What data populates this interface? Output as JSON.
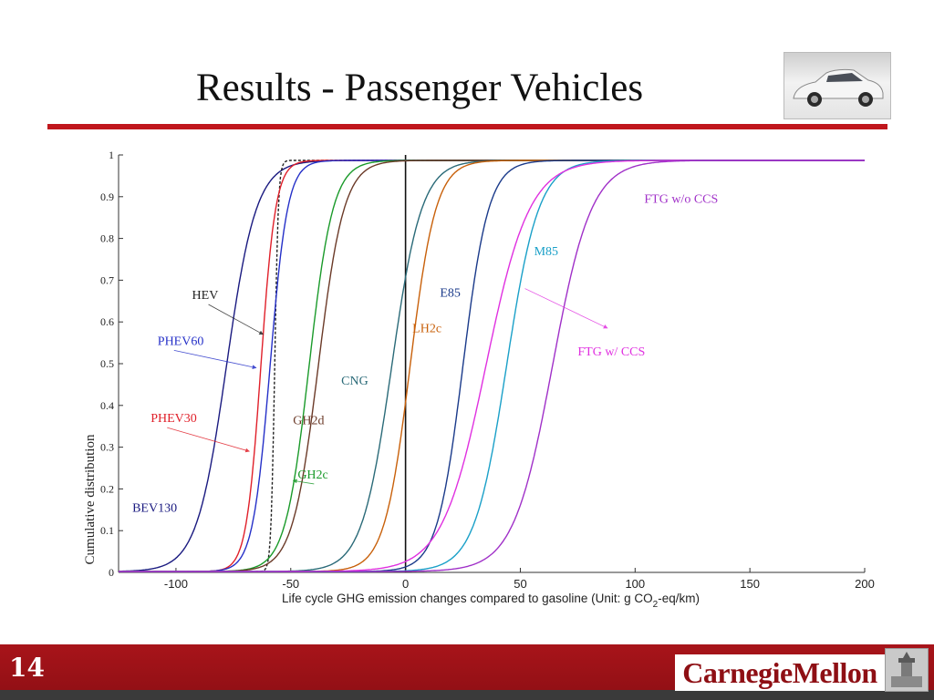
{
  "slide": {
    "title": "Results - Passenger Vehicles",
    "page_number": "14",
    "logo_text": "CarnegieMellon"
  },
  "chart_data": {
    "type": "line",
    "title": "",
    "xlabel": "Life cycle GHG emission changes compared to gasoline (Unit: g CO",
    "xlabel_sub": "2",
    "xlabel_end": "-eq/km)",
    "ylabel": "Cumulative distribution",
    "xlim": [
      -125,
      200
    ],
    "ylim": [
      0,
      1
    ],
    "x_ticks": [
      -100,
      -50,
      0,
      50,
      100,
      150,
      200
    ],
    "y_ticks": [
      0,
      0.1,
      0.2,
      0.3,
      0.4,
      0.5,
      0.6,
      0.7,
      0.8,
      0.9,
      1
    ],
    "y_tick_labels": [
      "0",
      "0.1",
      "0.2",
      "0.3",
      "0.4",
      "0.5",
      "0.6",
      "0.7",
      "0.8",
      "0.9",
      "1"
    ],
    "vertical_reference_line_x": 0,
    "series": [
      {
        "name": "BEV130",
        "color": "#1a1a80",
        "median": -78,
        "scale": 6.5
      },
      {
        "name": "HEV",
        "color": "#222222",
        "median": -57,
        "scale": 0.8
      },
      {
        "name": "PHEV30",
        "color": "#e0202a",
        "median": -63,
        "scale": 3.2
      },
      {
        "name": "PHEV60",
        "color": "#2530c8",
        "median": -59,
        "scale": 3.8
      },
      {
        "name": "GH2c",
        "color": "#1a9a2a",
        "median": -42,
        "scale": 5.2
      },
      {
        "name": "GH2d",
        "color": "#6b3a28",
        "median": -38,
        "scale": 5.6
      },
      {
        "name": "CNG",
        "color": "#2a6a78",
        "median": -6,
        "scale": 6.5
      },
      {
        "name": "LH2c",
        "color": "#c8600a",
        "median": 2,
        "scale": 5.6
      },
      {
        "name": "E85",
        "color": "#1a3a8a",
        "median": 25,
        "scale": 5.6
      },
      {
        "name": "M85",
        "color": "#1aa0c8",
        "median": 44,
        "scale": 7.0
      },
      {
        "name": "FTG w/ CCS",
        "color": "#e030e0",
        "median": 35,
        "scale": 9.5
      },
      {
        "name": "FTG w/o CCS",
        "color": "#a030c8",
        "median": 64,
        "scale": 8.5
      }
    ],
    "annotations": [
      {
        "text": "HEV",
        "color": "#222222",
        "x": -93,
        "y": 0.655,
        "arrow_to": [
          -62,
          0.57
        ]
      },
      {
        "text": "PHEV60",
        "color": "#2530c8",
        "x": -108,
        "y": 0.545,
        "arrow_to": [
          -65,
          0.49
        ]
      },
      {
        "text": "PHEV30",
        "color": "#e0202a",
        "x": -111,
        "y": 0.36,
        "arrow_to": [
          -68,
          0.29
        ]
      },
      {
        "text": "BEV130",
        "color": "#1a1a80",
        "x": -119,
        "y": 0.145,
        "arrow_to": null
      },
      {
        "text": "GH2d",
        "color": "#6b3a28",
        "x": -49,
        "y": 0.355,
        "arrow_to": null
      },
      {
        "text": "GH2c",
        "color": "#1a9a2a",
        "x": -47,
        "y": 0.225,
        "arrow_to": [
          -49,
          0.22
        ]
      },
      {
        "text": "CNG",
        "color": "#2a6a78",
        "x": -28,
        "y": 0.45,
        "arrow_to": null
      },
      {
        "text": "LH2c",
        "color": "#c8600a",
        "x": 3,
        "y": 0.575,
        "arrow_to": null
      },
      {
        "text": "E85",
        "color": "#1a3a8a",
        "x": 15,
        "y": 0.66,
        "arrow_to": null
      },
      {
        "text": "M85",
        "color": "#1aa0c8",
        "x": 56,
        "y": 0.76,
        "arrow_to": null
      },
      {
        "text": "FTG w/o CCS",
        "color": "#a030c8",
        "x": 104,
        "y": 0.885,
        "arrow_to": null
      },
      {
        "text": "FTG w/ CCS",
        "color": "#e030e0",
        "x": 75,
        "y": 0.52,
        "arrow_to": [
          88,
          0.585
        ],
        "arrow_from": [
          52,
          0.68
        ]
      }
    ],
    "grid": false,
    "legend": "none"
  }
}
